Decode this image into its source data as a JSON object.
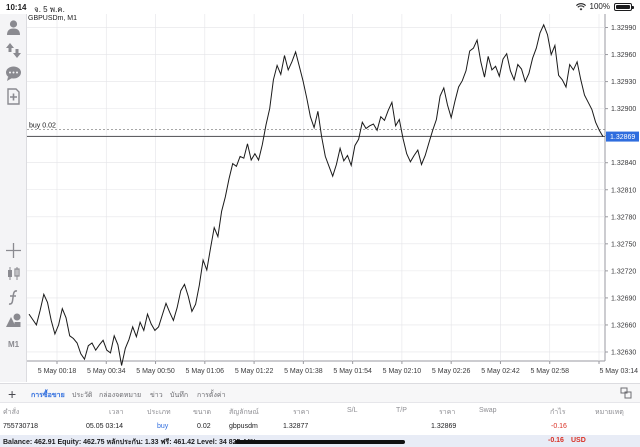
{
  "status_bar": {
    "time": "10:14",
    "date": "จ. 5 พ.ค.",
    "wifi_icon": "wifi-icon",
    "battery_percent": "100%",
    "battery_level": 1.0
  },
  "toolbar": {
    "items": [
      {
        "name": "profile-icon"
      },
      {
        "name": "quotes-icon"
      },
      {
        "name": "chat-icon"
      },
      {
        "name": "new-order-icon"
      },
      {
        "name": "crosshair-icon"
      },
      {
        "name": "chart-type-icon"
      },
      {
        "name": "indicators-icon"
      },
      {
        "name": "objects-icon"
      }
    ],
    "timeframe_label": "M1"
  },
  "chart": {
    "title": "GBPUSDm, M1",
    "order_line_label": "buy 0.02",
    "current_price_label": "1.32869",
    "colors": {
      "line": "#1a1a1a",
      "grid": "#e4e4e8",
      "order_line": "#8a8a8a",
      "price_marker": "#2f6dde"
    }
  },
  "chart_data": {
    "type": "line",
    "series_name": "GBPUSDm, M1",
    "y_ticks": [
      "1.32990",
      "1.32960",
      "1.32930",
      "1.32900",
      "1.32870",
      "1.32840",
      "1.32810",
      "1.32780",
      "1.32750",
      "1.32720",
      "1.32690",
      "1.32660",
      "1.32630"
    ],
    "x_ticks": [
      "5 May 00:18",
      "5 May 00:34",
      "5 May 00:50",
      "5 May 01:06",
      "5 May 01:22",
      "5 May 01:38",
      "5 May 01:54",
      "5 May 02:10",
      "5 May 02:26",
      "5 May 02:42",
      "5 May 02:58",
      "5 May 03:14"
    ],
    "ylim": [
      1.3262,
      1.33005
    ],
    "order_price": 1.32877,
    "current_price": 1.32869,
    "grid": true,
    "y": [
      1.32672,
      1.32666,
      1.3266,
      1.32676,
      1.32694,
      1.32685,
      1.32665,
      1.3265,
      1.3266,
      1.32678,
      1.32668,
      1.32648,
      1.32645,
      1.3264,
      1.32628,
      1.32622,
      1.32637,
      1.3264,
      1.32632,
      1.32638,
      1.32643,
      1.32632,
      1.32629,
      1.32648,
      1.32638,
      1.32615,
      1.32634,
      1.32644,
      1.32658,
      1.32647,
      1.32663,
      1.32654,
      1.32672,
      1.32661,
      1.32654,
      1.32658,
      1.32671,
      1.32684,
      1.32674,
      1.32665,
      1.32679,
      1.32698,
      1.32705,
      1.32692,
      1.32675,
      1.32683,
      1.32704,
      1.32732,
      1.32721,
      1.32745,
      1.32768,
      1.32758,
      1.32786,
      1.32802,
      1.32822,
      1.32839,
      1.32836,
      1.32847,
      1.32845,
      1.32861,
      1.32843,
      1.3285,
      1.32843,
      1.3286,
      1.32882,
      1.329,
      1.32932,
      1.32948,
      1.32938,
      1.32959,
      1.32943,
      1.32952,
      1.32963,
      1.32947,
      1.32931,
      1.32912,
      1.32891,
      1.32879,
      1.32897,
      1.32869,
      1.32847,
      1.32836,
      1.32825,
      1.32838,
      1.32856,
      1.32842,
      1.32848,
      1.32837,
      1.32859,
      1.32866,
      1.32885,
      1.32878,
      1.32881,
      1.32883,
      1.32876,
      1.32891,
      1.32887,
      1.32898,
      1.32907,
      1.32881,
      1.32888,
      1.32867,
      1.3285,
      1.32841,
      1.32848,
      1.32854,
      1.32838,
      1.32848,
      1.32862,
      1.32876,
      1.32888,
      1.32914,
      1.32923,
      1.32904,
      1.3289,
      1.32908,
      1.32924,
      1.32931,
      1.32942,
      1.32964,
      1.32967,
      1.32976,
      1.32952,
      1.32935,
      1.32958,
      1.32943,
      1.32947,
      1.32936,
      1.32955,
      1.32961,
      1.32942,
      1.32932,
      1.32949,
      1.32944,
      1.3293,
      1.32939,
      1.32956,
      1.32967,
      1.32984,
      1.32993,
      1.32982,
      1.3296,
      1.3297,
      1.32937,
      1.32932,
      1.32924,
      1.32949,
      1.32943,
      1.32952,
      1.32932,
      1.32915,
      1.32907,
      1.32899,
      1.32885,
      1.32876,
      1.32869
    ]
  },
  "tabs": [
    {
      "label": "การซื้อขาย",
      "active": true
    },
    {
      "label": "ประวัติ",
      "active": false
    },
    {
      "label": "กล่องจดหมาย",
      "active": false
    },
    {
      "label": "ข่าว",
      "active": false
    },
    {
      "label": "บันทึก",
      "active": false
    },
    {
      "label": "การตั้งค่า",
      "active": false
    }
  ],
  "positions": {
    "headers": {
      "order": "คำสั่ง",
      "time": "เวลา",
      "type": "ประเภท",
      "volume": "ขนาด",
      "symbol": "สัญลักษณ์",
      "price_open": "ราคา",
      "sl": "S/L",
      "tp": "T/P",
      "price_current": "ราคา",
      "swap": "Swap",
      "profit": "กำไร",
      "comment": "หมายเหตุ"
    },
    "rows": [
      {
        "order": "755730718",
        "time": "05.05 03:14",
        "type": "buy",
        "volume": "0.02",
        "symbol": "gbpusdm",
        "price_open": "1.32877",
        "sl": "",
        "tp": "",
        "price_current": "1.32869",
        "swap": "",
        "profit": "-0.16",
        "comment": ""
      }
    ]
  },
  "balance_bar": {
    "summary": "Balance: 462.91 Equity: 462.75 หลักประกัน: 1.33 ฟรี: 461.42 Level: 34 825.44%",
    "profit": "-0.16",
    "currency": "USD"
  }
}
